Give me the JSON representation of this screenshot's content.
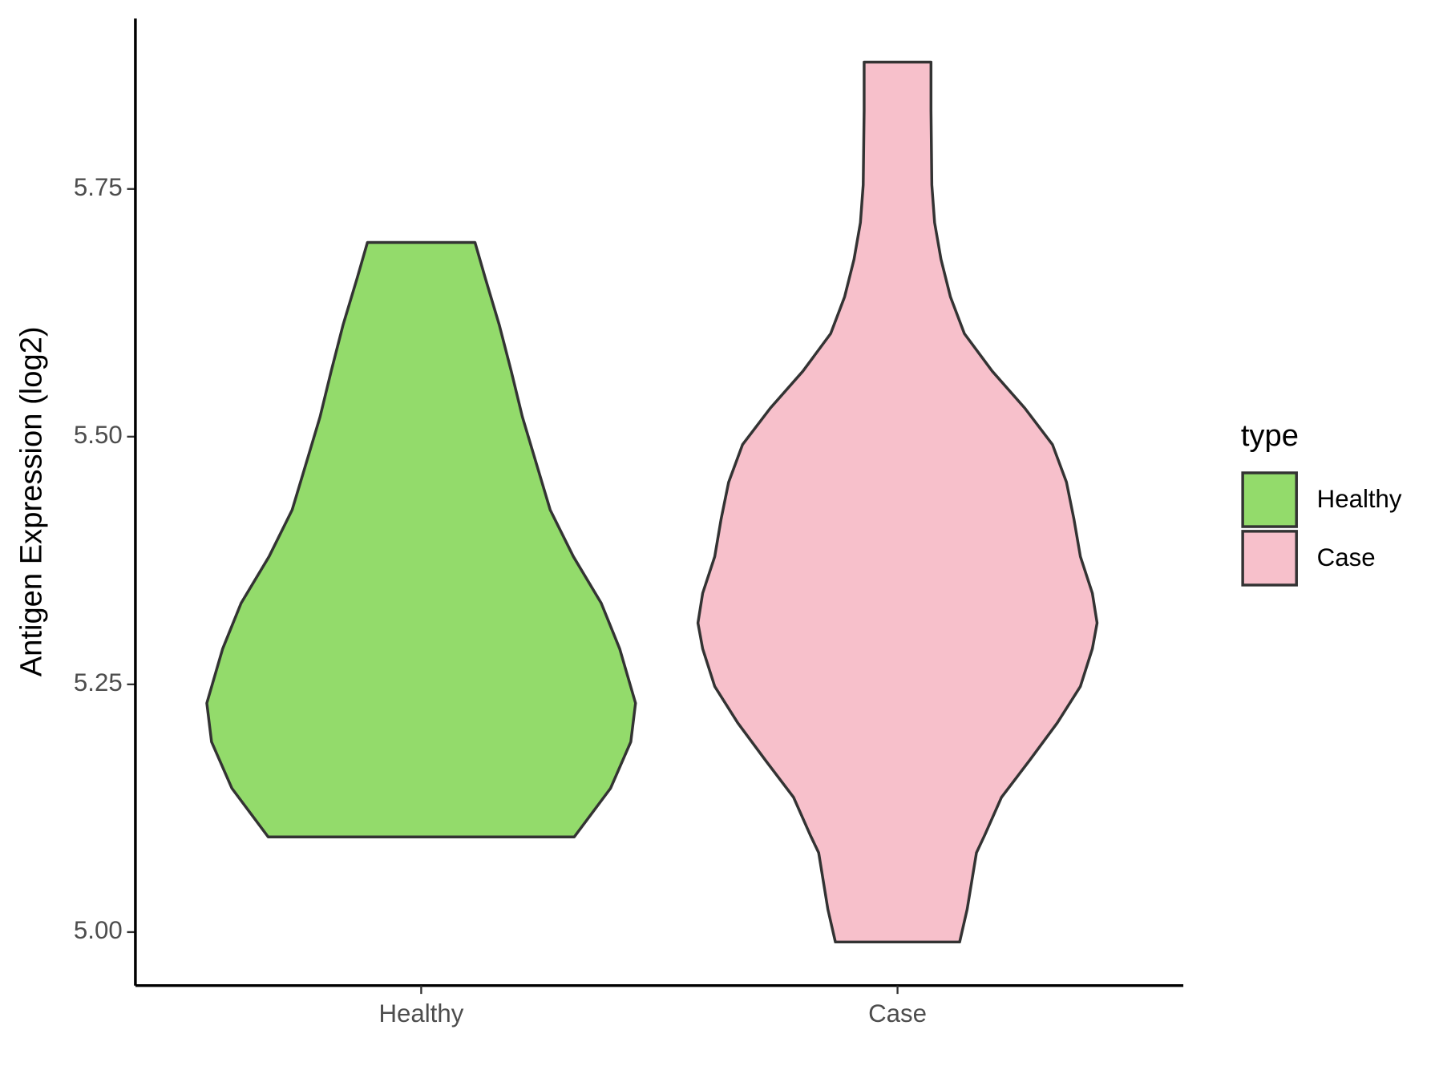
{
  "chart_data": {
    "type": "violin",
    "y_label": "Antigen Expression (log2)",
    "categories": [
      "Healthy",
      "Case"
    ],
    "legend_title": "type",
    "legend_position": "right",
    "ylim": [
      4.946,
      5.922
    ],
    "yticks": [
      {
        "value": 5,
        "label": "5.00"
      },
      5.25,
      {
        "value": 5.5,
        "label": "5.50"
      },
      5.75
    ],
    "series": [
      {
        "name": "Healthy",
        "color": "#93db6b",
        "y": [
          5.096,
          5.145,
          5.192,
          5.231,
          5.286,
          5.332,
          5.379,
          5.426,
          5.473,
          5.52,
          5.566,
          5.613,
          5.66,
          5.696
        ],
        "density": [
          0.714,
          0.883,
          0.978,
          1,
          0.926,
          0.84,
          0.71,
          0.602,
          0.537,
          0.472,
          0.42,
          0.364,
          0.299,
          0.251
        ]
      },
      {
        "name": "Case",
        "color": "#f7c0cb",
        "y": [
          4.99,
          5.023,
          5.08,
          5.098,
          5.136,
          5.173,
          5.211,
          5.248,
          5.286,
          5.312,
          5.342,
          5.379,
          5.417,
          5.454,
          5.492,
          5.529,
          5.566,
          5.604,
          5.641,
          5.679,
          5.716,
          5.754,
          5.829,
          5.878
        ],
        "density": [
          0.29,
          0.325,
          0.368,
          0.407,
          0.485,
          0.615,
          0.745,
          0.853,
          0.909,
          0.931,
          0.909,
          0.853,
          0.823,
          0.788,
          0.723,
          0.593,
          0.442,
          0.312,
          0.247,
          0.203,
          0.173,
          0.16,
          0.156,
          0.156
        ]
      }
    ]
  }
}
